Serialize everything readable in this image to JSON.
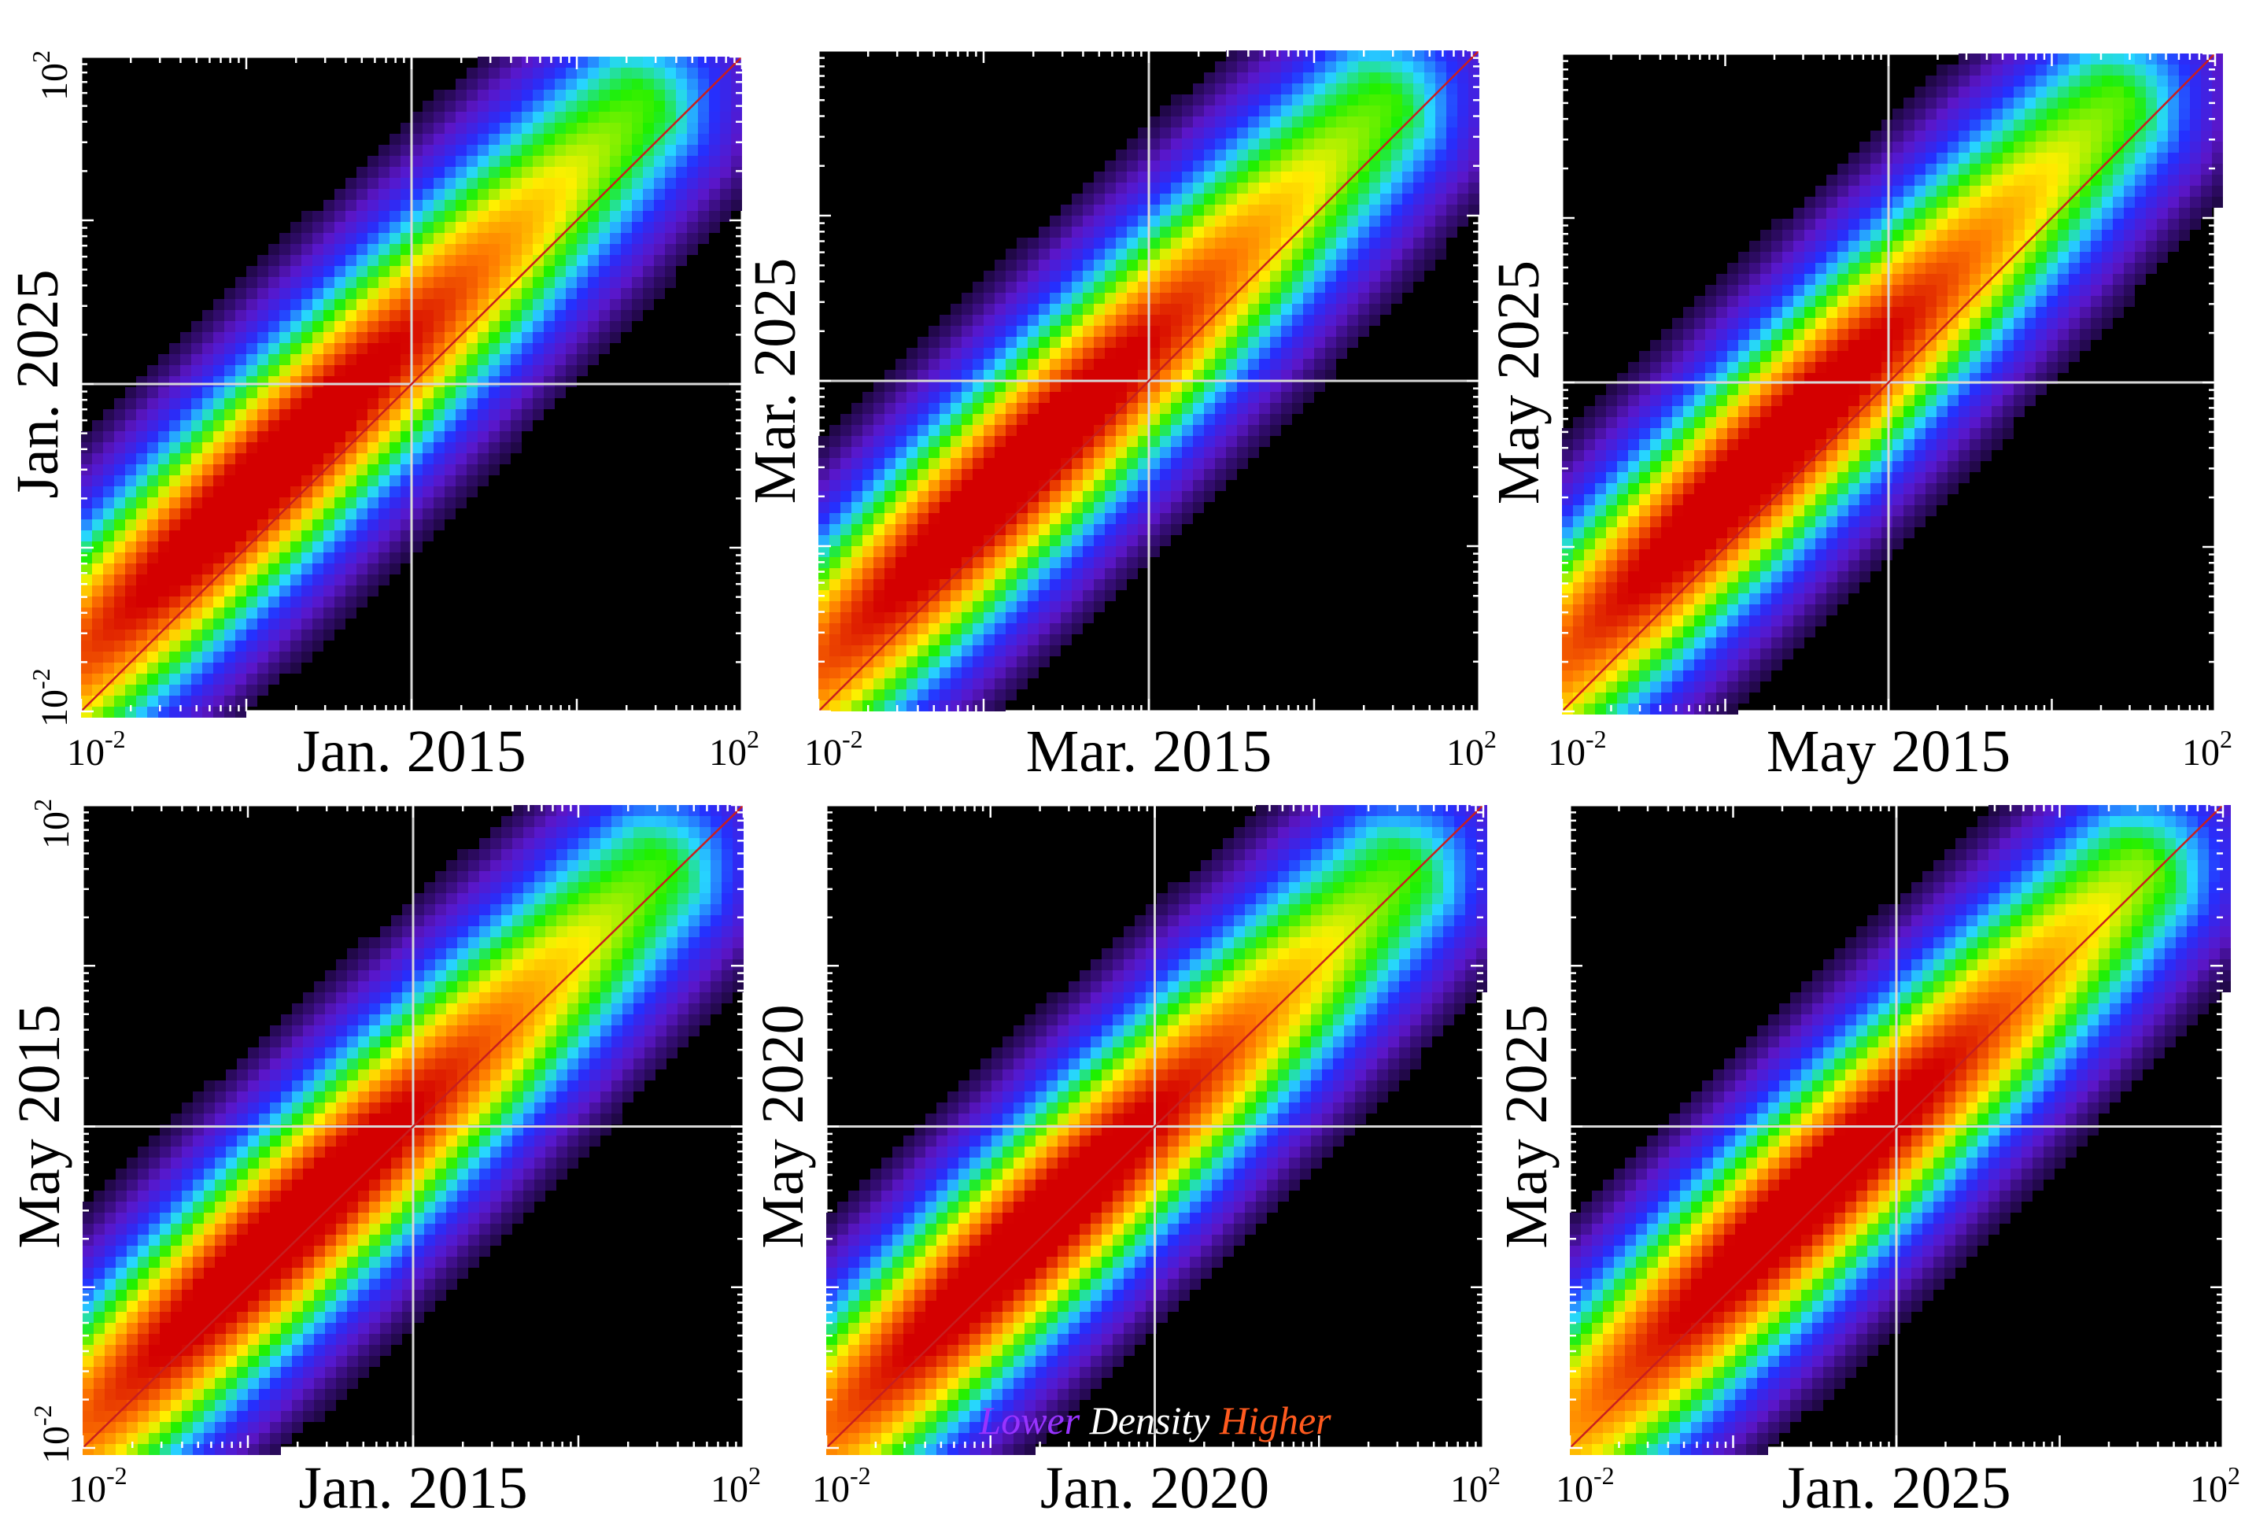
{
  "chart_data": [
    {
      "type": "heatmap",
      "panel": "top-left",
      "xlabel": "Jan. 2015",
      "ylabel": "Jan. 2025",
      "xscale": "log",
      "yscale": "log",
      "xlim": [
        0.01,
        100
      ],
      "ylim": [
        0.01,
        100
      ],
      "x_ticks": [
        {
          "base": "10",
          "exp": "-2"
        },
        {
          "base": "10",
          "exp": "2"
        }
      ],
      "y_ticks": [
        {
          "base": "10",
          "exp": "-2"
        },
        {
          "base": "10",
          "exp": "2"
        }
      ],
      "reference_lines": {
        "x": 1,
        "y": 1
      },
      "diagonal": "y = x",
      "cluster": {
        "x": 0.2,
        "y": 0.2,
        "ridge_offset": 0.32
      }
    },
    {
      "type": "heatmap",
      "panel": "top-middle",
      "xlabel": "Mar. 2015",
      "ylabel": "Mar. 2025",
      "xscale": "log",
      "yscale": "log",
      "xlim": [
        0.01,
        100
      ],
      "ylim": [
        0.01,
        100
      ],
      "x_ticks": [
        {
          "base": "10",
          "exp": "-2"
        },
        {
          "base": "10",
          "exp": "2"
        }
      ],
      "y_ticks": [],
      "reference_lines": {
        "x": 1,
        "y": 1
      },
      "diagonal": "y = x",
      "cluster": {
        "x": 0.2,
        "y": 0.22,
        "ridge_offset": 0.25
      }
    },
    {
      "type": "heatmap",
      "panel": "top-right",
      "xlabel": "May 2015",
      "ylabel": "May 2025",
      "xscale": "log",
      "yscale": "log",
      "xlim": [
        0.01,
        100
      ],
      "ylim": [
        0.01,
        100
      ],
      "x_ticks": [
        {
          "base": "10",
          "exp": "-2"
        },
        {
          "base": "10",
          "exp": "2"
        }
      ],
      "y_ticks": [],
      "reference_lines": {
        "x": 1,
        "y": 1
      },
      "diagonal": "y = x",
      "cluster": {
        "x": 0.2,
        "y": 0.28,
        "ridge_offset": 0.3
      }
    },
    {
      "type": "heatmap",
      "panel": "bottom-left",
      "xlabel": "Jan. 2015",
      "ylabel": "May 2015",
      "xscale": "log",
      "yscale": "log",
      "xlim": [
        0.01,
        100
      ],
      "ylim": [
        0.01,
        100
      ],
      "x_ticks": [
        {
          "base": "10",
          "exp": "-2"
        },
        {
          "base": "10",
          "exp": "2"
        }
      ],
      "y_ticks": [
        {
          "base": "10",
          "exp": "-2"
        },
        {
          "base": "10",
          "exp": "2"
        }
      ],
      "reference_lines": {
        "x": 1,
        "y": 1
      },
      "diagonal": "y = x",
      "cluster": {
        "x": 0.2,
        "y": 0.2,
        "ridge_offset": 0.12
      }
    },
    {
      "type": "heatmap",
      "panel": "bottom-middle",
      "xlabel": "Jan. 2020",
      "ylabel": "May 2020",
      "xscale": "log",
      "yscale": "log",
      "xlim": [
        0.01,
        100
      ],
      "ylim": [
        0.01,
        100
      ],
      "x_ticks": [
        {
          "base": "10",
          "exp": "-2"
        },
        {
          "base": "10",
          "exp": "2"
        }
      ],
      "y_ticks": [],
      "reference_lines": {
        "x": 1,
        "y": 1
      },
      "diagonal": "y = x",
      "cluster": {
        "x": 0.2,
        "y": 0.22,
        "ridge_offset": 0.08
      }
    },
    {
      "type": "heatmap",
      "panel": "bottom-right",
      "xlabel": "Jan. 2025",
      "ylabel": "May 2025",
      "xscale": "log",
      "yscale": "log",
      "xlim": [
        0.01,
        100
      ],
      "ylim": [
        0.01,
        100
      ],
      "x_ticks": [
        {
          "base": "10",
          "exp": "-2"
        },
        {
          "base": "10",
          "exp": "2"
        }
      ],
      "y_ticks": [],
      "reference_lines": {
        "x": 1,
        "y": 1
      },
      "diagonal": "y = x",
      "cluster": {
        "x": 0.3,
        "y": 0.35,
        "ridge_offset": 0.1
      }
    }
  ],
  "legend": {
    "lower": "Lower",
    "density": "Density",
    "higher": "Higher",
    "colors": {
      "lower": "#9933ff",
      "density": "#ffffff",
      "higher": "#ff5a1e"
    }
  },
  "colormap": [
    "#000000",
    "#5b16c8",
    "#2430ff",
    "#27d6ff",
    "#1ff000",
    "#fff000",
    "#ff7a00",
    "#d40000"
  ],
  "colors": {
    "diagonal": "#c81e1e",
    "reference_lines": "#d8d8d8",
    "background": "#000000"
  }
}
